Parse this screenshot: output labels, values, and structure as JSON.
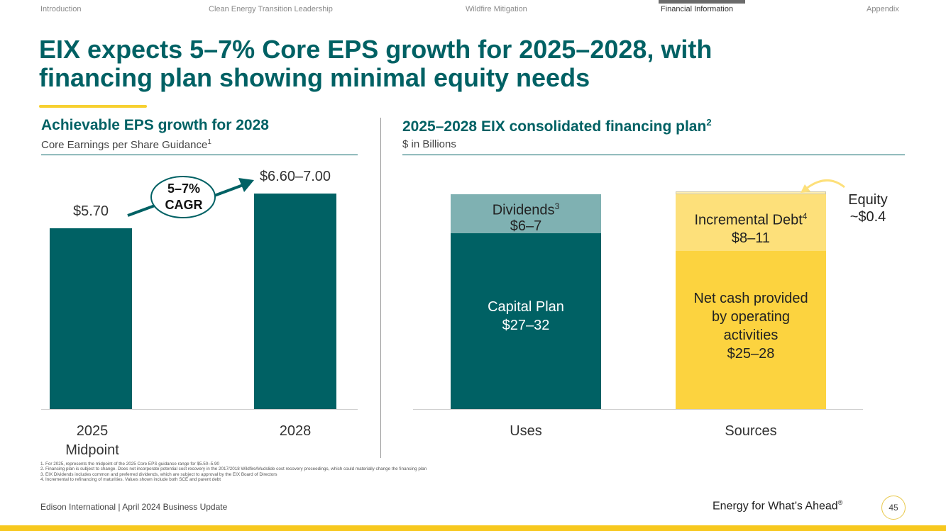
{
  "nav": {
    "items": [
      "Introduction",
      "Clean Energy Transition Leadership",
      "Wildfire Mitigation",
      "Financial Information",
      "Appendix"
    ],
    "active": "Financial Information"
  },
  "title": {
    "line1": "EIX expects 5–7% Core EPS growth for 2025–2028, with",
    "line2": "financing plan showing minimal equity needs"
  },
  "left": {
    "heading": "Achievable EPS growth for 2028",
    "subheading": "Core Earnings per Share Guidance",
    "subheading_note": "1",
    "cagr_line1": "5–7%",
    "cagr_line2": "CAGR"
  },
  "right": {
    "heading": "2025–2028 EIX consolidated financing plan",
    "heading_note": "2",
    "subheading": "$ in Billions",
    "equity_line1": "Equity",
    "equity_line2": "~$0.4"
  },
  "chart_data": [
    {
      "type": "bar",
      "title": "Achievable EPS growth for 2028",
      "subtitle": "Core Earnings per Share Guidance",
      "categories": [
        "2025 Midpoint",
        "2028"
      ],
      "category_lines": [
        [
          "2025",
          "Midpoint"
        ],
        [
          "2028"
        ]
      ],
      "values": [
        5.7,
        6.8
      ],
      "labels": [
        "$5.70",
        "$6.60–7.00"
      ],
      "annotation": "5–7% CAGR",
      "color": "#006164"
    },
    {
      "type": "bar",
      "stacked": true,
      "title": "2025–2028 EIX consolidated financing plan",
      "subtitle": "$ in Billions",
      "categories": [
        "Uses",
        "Sources"
      ],
      "stacks": [
        {
          "category": "Uses",
          "segments": [
            {
              "name": "Capital Plan",
              "range": "$27–32",
              "value": 29.5,
              "color": "#006164"
            },
            {
              "name": "Dividends",
              "note": "3",
              "range": "$6–7",
              "value": 6.5,
              "color": "#7fb1b2"
            }
          ]
        },
        {
          "category": "Sources",
          "segments": [
            {
              "name": "Net cash provided by operating activities",
              "name_lines": [
                "Net cash provided",
                "by operating",
                "activities"
              ],
              "range": "$25–28",
              "value": 26.5,
              "color": "#fcd33f"
            },
            {
              "name": "Incremental Debt",
              "note": "4",
              "range": "$8–11",
              "value": 9.5,
              "color": "#fde07a"
            },
            {
              "name": "Equity",
              "range": "~$0.4",
              "value": 0.4,
              "color": "#fdeeb3"
            }
          ]
        }
      ]
    }
  ],
  "footnotes": [
    "1.  For 2025, represents the midpoint of the 2025 Core EPS guidance range for $5.50–5.90",
    "2.  Financing plan is subject to change. Does not incorporate potential cost recovery in the 2017/2018 Wildfire/Mudslide cost recovery proceedings, which could materially change the financing plan",
    "3.  EIX Dividends includes common and preferred dividends, which are subject to approval by the EIX Board of Directors",
    "4.  Incremental to refinancing of maturities. Values shown include both SCE and parent debt"
  ],
  "footer": {
    "left": "Edison International |  April 2024 Business Update",
    "tagline": "Energy for What’s Ahead",
    "tagline_mark": "®",
    "page": "45"
  },
  "colors": {
    "teal": "#006164",
    "light_teal": "#7fb1b2",
    "yellow": "#fcd33f",
    "light_yellow": "#fde07a",
    "pale_yellow": "#fdeeb3",
    "band": "#f7c81e"
  }
}
